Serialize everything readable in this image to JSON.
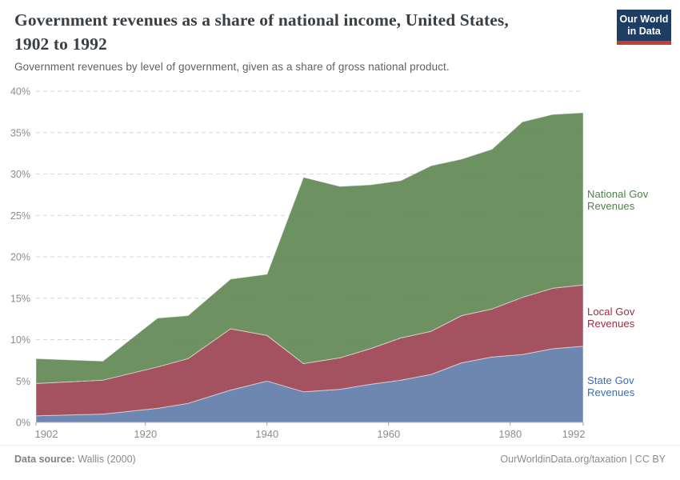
{
  "header": {
    "title": "Government revenues as a share of national income, United States,\n1902 to 1992",
    "subtitle": "Government revenues by level of government, given as a share of gross national product.",
    "logo": {
      "line1": "Our World",
      "line2": "in Data",
      "bg": "#1d3d63",
      "accent": "#c43c34"
    }
  },
  "chart_data": {
    "type": "area",
    "stacked": true,
    "title": "Government revenues as a share of national income, United States, 1902 to 1992",
    "subtitle": "Government revenues by level of government, given as a share of gross national product.",
    "x": [
      1902,
      1913,
      1922,
      1927,
      1934,
      1940,
      1946,
      1952,
      1957,
      1962,
      1967,
      1972,
      1977,
      1982,
      1987,
      1992
    ],
    "series": [
      {
        "id": "state",
        "name": "State Gov Revenues",
        "label": "State Gov\nRevenues",
        "color": "#6e87b1",
        "label_color": "#3d6cb4",
        "values": [
          0.8,
          1.0,
          1.7,
          2.3,
          3.9,
          5.0,
          3.7,
          4.0,
          4.6,
          5.1,
          5.8,
          7.2,
          7.9,
          8.2,
          8.9,
          9.2
        ]
      },
      {
        "id": "local",
        "name": "Local Gov Revenues",
        "label": "Local Gov\nRevenues",
        "color": "#a4525f",
        "label_color": "#9e2a3f",
        "values": [
          3.9,
          4.1,
          5.0,
          5.4,
          7.4,
          5.5,
          3.4,
          3.8,
          4.3,
          5.1,
          5.2,
          5.7,
          5.8,
          6.9,
          7.3,
          7.4
        ]
      },
      {
        "id": "national",
        "name": "National Gov Revenues",
        "label": "National Gov\nRevenues",
        "color": "#6e9162",
        "label_color": "#4c8246",
        "values": [
          3.0,
          2.3,
          5.9,
          5.2,
          6.0,
          7.4,
          22.5,
          20.7,
          19.8,
          19.0,
          20.0,
          18.9,
          19.3,
          21.2,
          21.0,
          20.8
        ]
      }
    ],
    "xlabel": "",
    "ylabel": "",
    "ylim": [
      0,
      40
    ],
    "yticks": [
      0,
      5,
      10,
      15,
      20,
      25,
      30,
      35,
      40
    ],
    "ytick_labels": [
      "0%",
      "5%",
      "10%",
      "15%",
      "20%",
      "25%",
      "30%",
      "35%",
      "40%"
    ],
    "xticks": [
      1902,
      1920,
      1940,
      1960,
      1980,
      1992
    ],
    "grid": "horizontal-dashed",
    "legend_position": "right-of-plot"
  },
  "footer": {
    "source_label": "Data source:",
    "source": " Wallis (2000)",
    "right": "OurWorldinData.org/taxation | CC BY"
  }
}
